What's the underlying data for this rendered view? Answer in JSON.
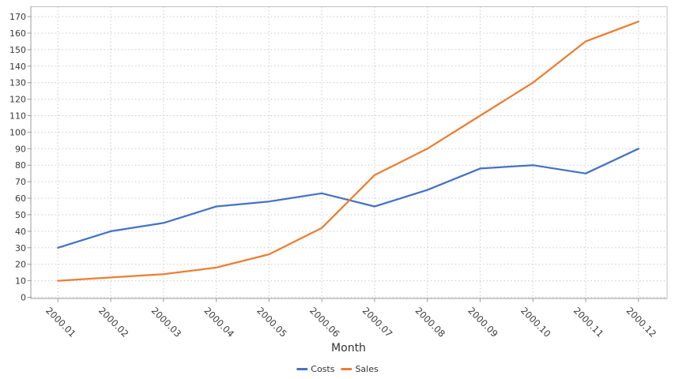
{
  "chart_data": {
    "type": "line",
    "title": "",
    "xlabel": "Month",
    "ylabel": "",
    "x_categories": [
      "2000.01",
      "2000.02",
      "2000.03",
      "2000.04",
      "2000.05",
      "2000.06",
      "2000.07",
      "2000.08",
      "2000.09",
      "2000.10",
      "2000.11",
      "2000.12"
    ],
    "series": [
      {
        "name": "Costs",
        "color": "#4472c4",
        "values": [
          30,
          40,
          45,
          55,
          58,
          63,
          55,
          65,
          78,
          80,
          75,
          90
        ]
      },
      {
        "name": "Sales",
        "color": "#ed7d31",
        "values": [
          10,
          12,
          14,
          18,
          26,
          42,
          74,
          90,
          110,
          130,
          155,
          167
        ]
      }
    ],
    "ylim": [
      0,
      176
    ],
    "yticks": [
      0,
      10,
      20,
      30,
      40,
      50,
      60,
      70,
      80,
      90,
      100,
      110,
      120,
      130,
      140,
      150,
      160,
      170
    ],
    "grid": "dotted",
    "legend_position": "bottom-center",
    "x_tick_rotation_deg": 45
  },
  "colors": {
    "background": "#ffffff",
    "grid": "#cdcdcd",
    "plot_border": "#c2c2c2",
    "axis": "#9b9b9b",
    "tick_text": "#3a3a3a",
    "axis_title_text": "#333333",
    "legend_text": "#333333"
  }
}
